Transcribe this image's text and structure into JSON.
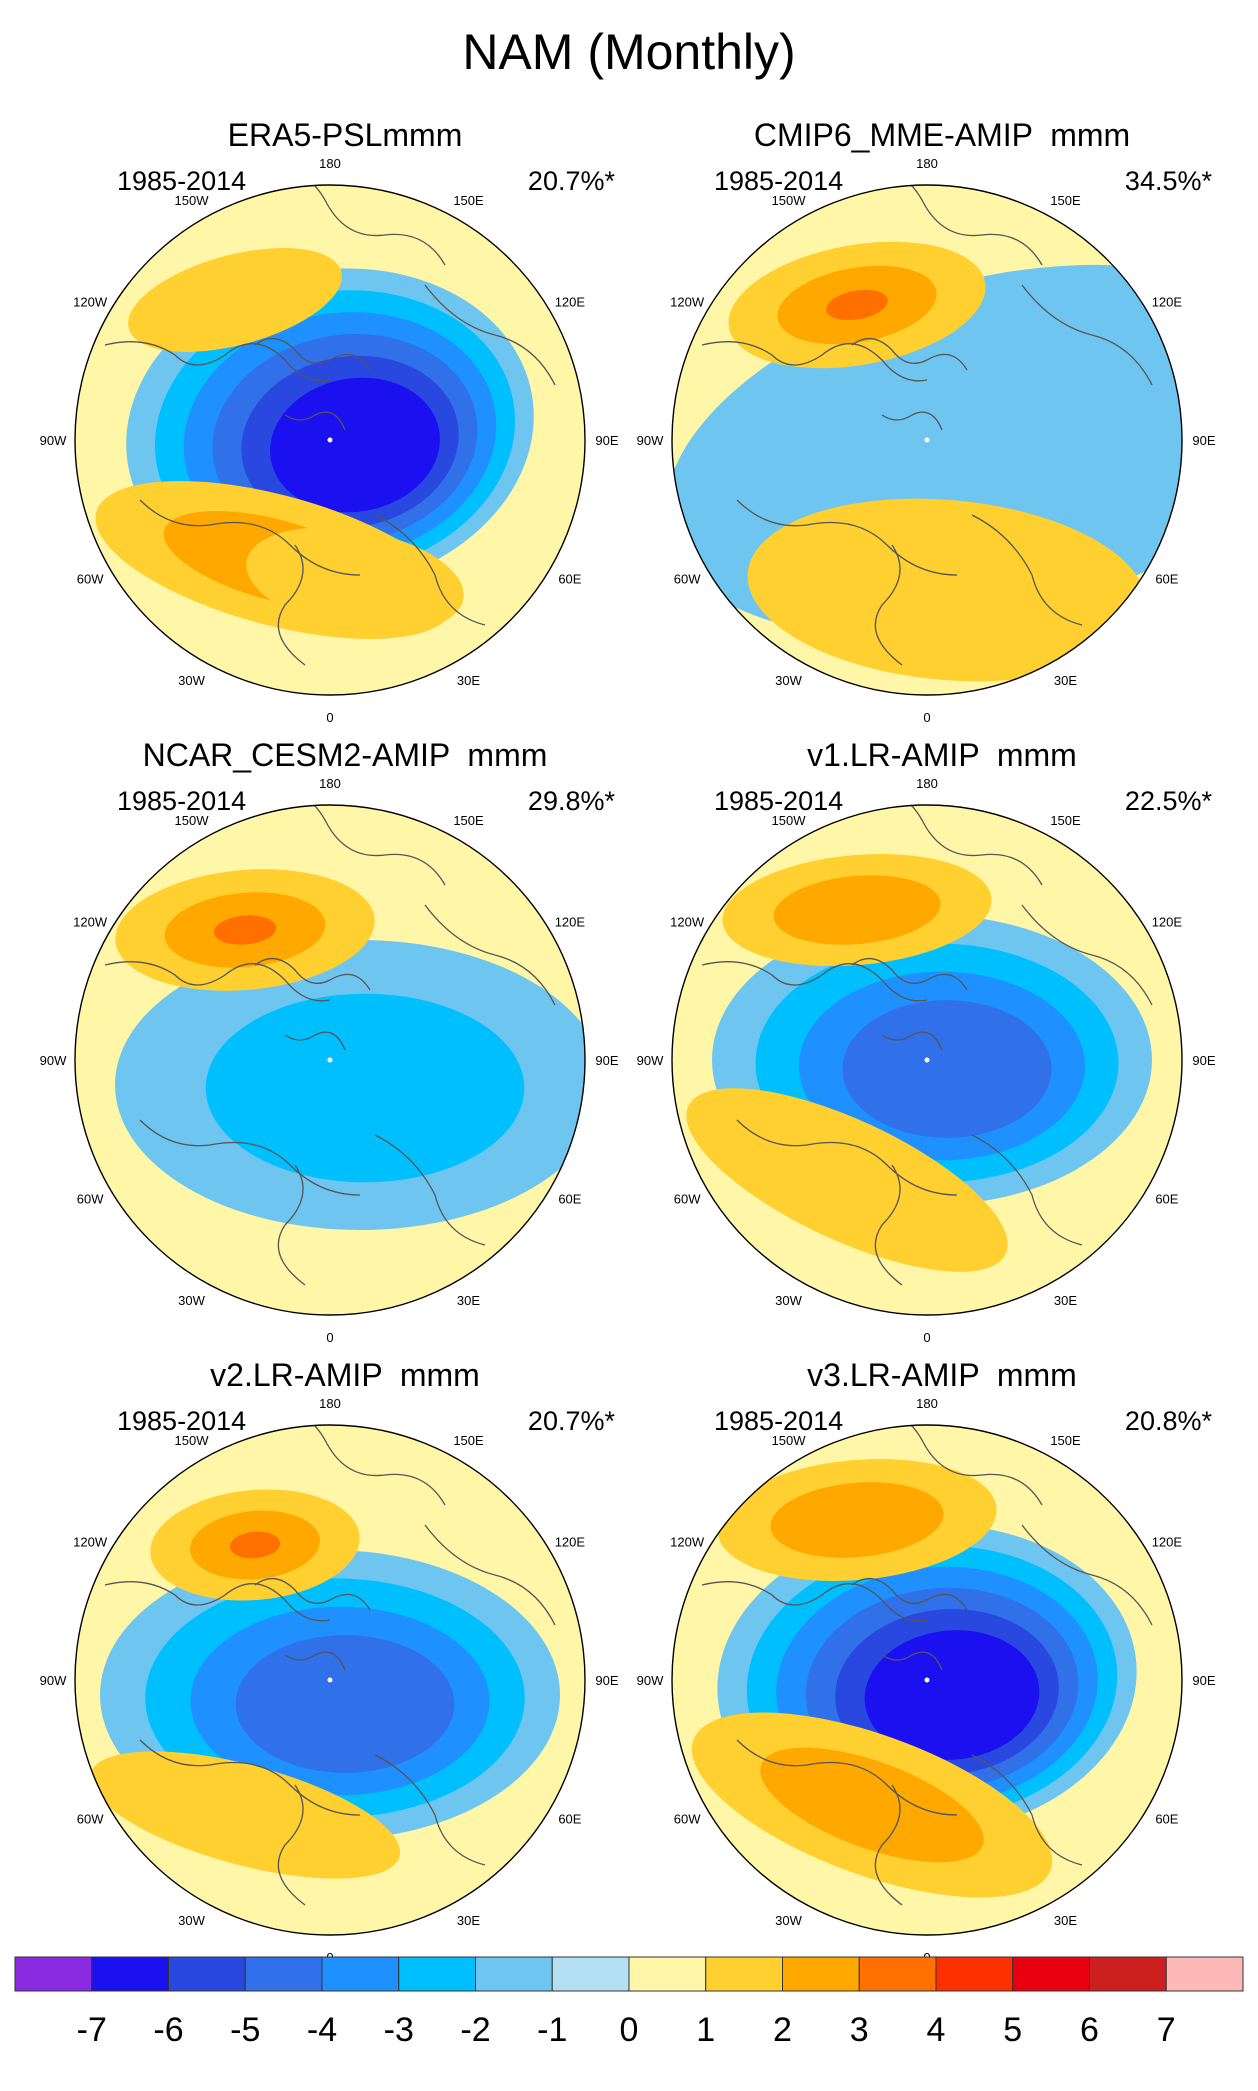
{
  "title": "NAM (Monthly)",
  "panels": [
    {
      "name": "ERA5-PSLmmm",
      "period": "1985-2014",
      "variance": "20.7%*",
      "low": -6,
      "pac": 1,
      "atl": 2,
      "shape": "era5"
    },
    {
      "name": "CMIP6_MME-AMIP  mmm",
      "period": "1985-2014",
      "variance": "34.5%*",
      "low": -1,
      "pac": 3,
      "atl": 1,
      "shape": "mme"
    },
    {
      "name": "NCAR_CESM2-AMIP  mmm",
      "period": "1985-2014",
      "variance": "29.8%*",
      "low": -2,
      "pac": 3,
      "atl": 0,
      "shape": "cesm"
    },
    {
      "name": "v1.LR-AMIP  mmm",
      "period": "1985-2014",
      "variance": "22.5%*",
      "low": -4,
      "pac": 2,
      "atl": 1,
      "shape": "v1"
    },
    {
      "name": "v2.LR-AMIP  mmm",
      "period": "1985-2014",
      "variance": "20.7%*",
      "low": -4,
      "pac": 3,
      "atl": 1,
      "shape": "v2"
    },
    {
      "name": "v3.LR-AMIP  mmm",
      "period": "1985-2014",
      "variance": "20.8%*",
      "low": -6,
      "pac": 2,
      "atl": 2,
      "shape": "v3"
    }
  ],
  "lon_labels": [
    "180",
    "150E",
    "120E",
    "90E",
    "60E",
    "30E",
    "0",
    "30W",
    "60W",
    "90W",
    "120W",
    "150W"
  ],
  "colorbar": {
    "labels": [
      "-7",
      "-6",
      "-5",
      "-4",
      "-3",
      "-2",
      "-1",
      "0",
      "1",
      "2",
      "3",
      "4",
      "5",
      "6",
      "7"
    ],
    "colors": [
      "#8a2be2",
      "#1a10f0",
      "#2848e0",
      "#3070e8",
      "#1e90ff",
      "#00bfff",
      "#6ec6f0",
      "#b3dff2",
      "#fff6a8",
      "#ffd030",
      "#ffa800",
      "#ff7000",
      "#ff3000",
      "#e80010",
      "#cc2020",
      "#ffb8b8"
    ]
  }
}
